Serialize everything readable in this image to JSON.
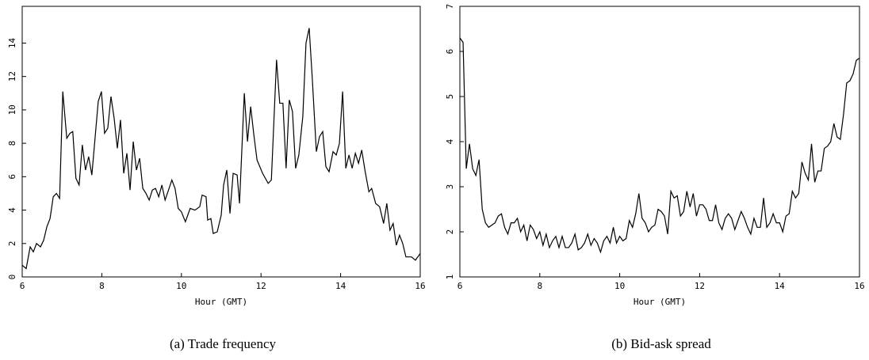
{
  "chart_data": [
    {
      "type": "line",
      "xlabel": "Hour (GMT)",
      "caption": "(a) Trade frequency",
      "color": "#000000",
      "xlim": [
        6,
        16
      ],
      "xticks": [
        6,
        8,
        10,
        12,
        14,
        16
      ],
      "ylim": [
        0,
        16.2
      ],
      "yticks": [
        0,
        2,
        4,
        6,
        8,
        10,
        12,
        14
      ],
      "x": [
        6.0,
        6.1,
        6.2,
        6.28,
        6.36,
        6.46,
        6.54,
        6.62,
        6.7,
        6.78,
        6.86,
        6.94,
        7.02,
        7.12,
        7.2,
        7.27,
        7.35,
        7.43,
        7.51,
        7.59,
        7.67,
        7.75,
        7.83,
        7.91,
        7.99,
        8.07,
        8.15,
        8.23,
        8.31,
        8.39,
        8.47,
        8.55,
        8.63,
        8.71,
        8.79,
        8.87,
        8.95,
        9.03,
        9.11,
        9.19,
        9.27,
        9.35,
        9.43,
        9.51,
        9.59,
        9.69,
        9.76,
        9.84,
        9.92,
        10.0,
        10.1,
        10.22,
        10.34,
        10.46,
        10.52,
        10.62,
        10.66,
        10.74,
        10.8,
        10.9,
        11.0,
        11.06,
        11.14,
        11.22,
        11.3,
        11.4,
        11.46,
        11.58,
        11.66,
        11.74,
        11.82,
        11.9,
        12.04,
        12.18,
        12.26,
        12.39,
        12.47,
        12.55,
        12.63,
        12.71,
        12.79,
        12.87,
        12.95,
        13.05,
        13.13,
        13.21,
        13.29,
        13.39,
        13.47,
        13.55,
        13.63,
        13.71,
        13.81,
        13.89,
        13.97,
        14.05,
        14.13,
        14.21,
        14.29,
        14.37,
        14.45,
        14.53,
        14.61,
        14.71,
        14.78,
        14.88,
        14.98,
        15.08,
        15.16,
        15.24,
        15.32,
        15.4,
        15.48,
        15.56,
        15.64,
        15.78,
        15.88,
        16.0
      ],
      "values": [
        0.7,
        0.5,
        1.8,
        1.5,
        2.0,
        1.8,
        2.2,
        3.0,
        3.5,
        4.8,
        5.0,
        4.7,
        11.1,
        8.3,
        8.6,
        8.7,
        5.9,
        5.5,
        7.9,
        6.4,
        7.2,
        6.1,
        8.3,
        10.5,
        11.1,
        8.6,
        8.9,
        10.8,
        9.5,
        7.7,
        9.4,
        6.2,
        7.4,
        5.2,
        8.1,
        6.4,
        7.1,
        5.3,
        5.0,
        4.6,
        5.2,
        5.3,
        4.8,
        5.5,
        4.6,
        5.3,
        5.8,
        5.3,
        4.1,
        3.9,
        3.3,
        4.1,
        4.0,
        4.2,
        4.9,
        4.8,
        3.4,
        3.5,
        2.6,
        2.7,
        3.7,
        5.5,
        6.4,
        3.8,
        6.2,
        6.1,
        4.4,
        11.0,
        8.1,
        10.2,
        8.5,
        7.0,
        6.2,
        5.6,
        5.8,
        13.0,
        10.4,
        10.4,
        6.5,
        10.6,
        9.9,
        6.5,
        7.3,
        9.6,
        14.0,
        14.9,
        11.8,
        7.5,
        8.4,
        8.7,
        6.6,
        6.3,
        7.5,
        7.3,
        8.0,
        11.1,
        6.5,
        7.3,
        6.5,
        7.4,
        6.8,
        7.6,
        6.4,
        5.1,
        5.3,
        4.4,
        4.2,
        3.2,
        4.4,
        2.8,
        3.2,
        1.9,
        2.5,
        2.0,
        1.2,
        1.2,
        1.0,
        1.4
      ]
    },
    {
      "type": "line",
      "xlabel": "Hour (GMT)",
      "caption": "(b) Bid-ask spread",
      "color": "#000000",
      "xlim": [
        6,
        16
      ],
      "xticks": [
        6,
        8,
        10,
        12,
        14,
        16
      ],
      "ylim": [
        1,
        7
      ],
      "yticks": [
        1,
        2,
        3,
        4,
        5,
        6,
        7
      ],
      "x": [
        6.0,
        6.08,
        6.16,
        6.24,
        6.32,
        6.4,
        6.48,
        6.56,
        6.64,
        6.72,
        6.8,
        6.88,
        6.96,
        7.04,
        7.12,
        7.2,
        7.28,
        7.36,
        7.44,
        7.52,
        7.6,
        7.68,
        7.76,
        7.84,
        7.92,
        8.0,
        8.08,
        8.16,
        8.24,
        8.32,
        8.4,
        8.48,
        8.56,
        8.64,
        8.72,
        8.8,
        8.88,
        8.96,
        9.04,
        9.12,
        9.2,
        9.28,
        9.36,
        9.44,
        9.52,
        9.6,
        9.68,
        9.76,
        9.84,
        9.92,
        10.0,
        10.08,
        10.16,
        10.24,
        10.32,
        10.4,
        10.48,
        10.56,
        10.64,
        10.72,
        10.8,
        10.88,
        10.96,
        11.04,
        11.12,
        11.2,
        11.28,
        11.36,
        11.44,
        11.52,
        11.6,
        11.68,
        11.76,
        11.84,
        11.92,
        12.0,
        12.08,
        12.16,
        12.24,
        12.32,
        12.4,
        12.48,
        12.56,
        12.64,
        12.72,
        12.8,
        12.88,
        12.96,
        13.04,
        13.12,
        13.2,
        13.28,
        13.36,
        13.44,
        13.52,
        13.6,
        13.68,
        13.76,
        13.84,
        13.92,
        14.0,
        14.08,
        14.16,
        14.24,
        14.32,
        14.4,
        14.48,
        14.56,
        14.64,
        14.72,
        14.8,
        14.88,
        14.96,
        15.04,
        15.12,
        15.2,
        15.28,
        15.36,
        15.44,
        15.52,
        15.6,
        15.68,
        15.76,
        15.84,
        15.92,
        16.0
      ],
      "values": [
        6.3,
        6.2,
        3.4,
        3.95,
        3.4,
        3.25,
        3.6,
        2.5,
        2.2,
        2.1,
        2.15,
        2.2,
        2.35,
        2.4,
        2.1,
        1.95,
        2.2,
        2.2,
        2.3,
        2.0,
        2.15,
        1.8,
        2.15,
        2.05,
        1.85,
        2.0,
        1.7,
        1.95,
        1.65,
        1.8,
        1.9,
        1.65,
        1.9,
        1.65,
        1.65,
        1.75,
        1.95,
        1.6,
        1.65,
        1.75,
        1.95,
        1.7,
        1.85,
        1.75,
        1.55,
        1.8,
        1.9,
        1.75,
        2.1,
        1.75,
        1.9,
        1.8,
        1.85,
        2.25,
        2.1,
        2.4,
        2.85,
        2.3,
        2.2,
        2.0,
        2.1,
        2.15,
        2.5,
        2.45,
        2.35,
        1.95,
        2.9,
        2.75,
        2.8,
        2.35,
        2.45,
        2.9,
        2.55,
        2.85,
        2.35,
        2.6,
        2.6,
        2.5,
        2.25,
        2.25,
        2.6,
        2.2,
        2.05,
        2.3,
        2.4,
        2.3,
        2.05,
        2.25,
        2.45,
        2.3,
        2.1,
        1.95,
        2.3,
        2.1,
        2.1,
        2.75,
        2.1,
        2.2,
        2.4,
        2.2,
        2.2,
        2.0,
        2.35,
        2.4,
        2.9,
        2.75,
        2.85,
        3.55,
        3.3,
        3.15,
        3.95,
        3.1,
        3.35,
        3.35,
        3.85,
        3.9,
        4.0,
        4.4,
        4.1,
        4.05,
        4.6,
        5.3,
        5.35,
        5.5,
        5.8,
        5.85
      ]
    }
  ]
}
